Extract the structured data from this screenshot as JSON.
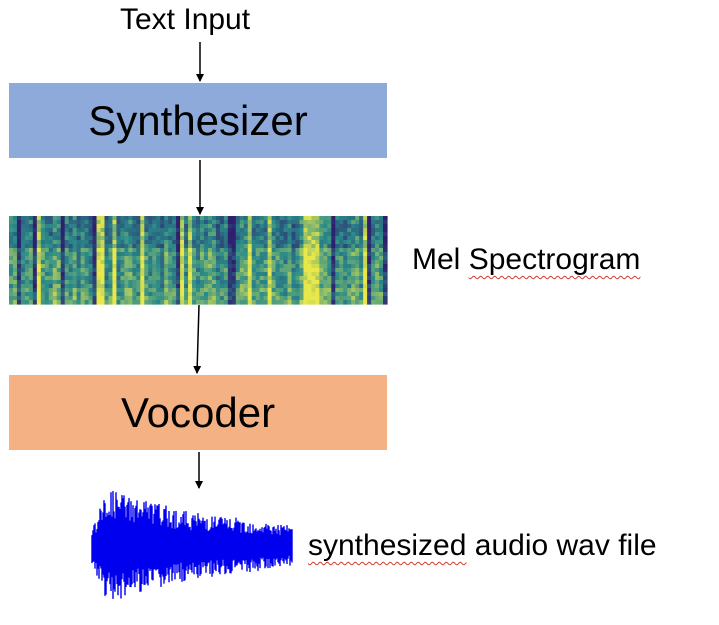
{
  "nodes": {
    "input": "Text Input",
    "synthesizer": "Synthesizer",
    "mel_spectrogram_a": "Mel",
    "mel_spectrogram_b": "Spectrogram",
    "vocoder": "Vocoder",
    "output_a": "synthesized",
    "output_b": "audio wav file"
  },
  "colors": {
    "synthesizer_fill": "#8eaadb",
    "vocoder_fill": "#f4b183",
    "waveform": "#0000ee",
    "spectrogram_low": "#2f1f6e",
    "spectrogram_mid": "#2a8a8a",
    "spectrogram_high": "#e8e84a",
    "spellcheck_underline": "#d23a2a"
  },
  "icons": {
    "spectrogram": "mel-spectrogram-image",
    "waveform": "audio-waveform-image"
  }
}
